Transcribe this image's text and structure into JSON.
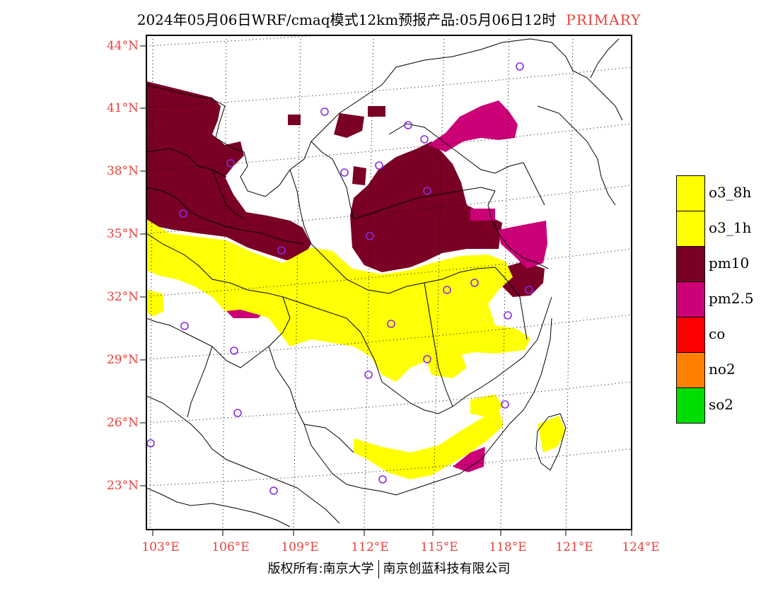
{
  "header": {
    "title": "2024年05月06日WRF/cmaq模式12km预报产品:05月06日12时",
    "tag": "PRIMARY"
  },
  "map": {
    "lat_labels": [
      "44°N",
      "41°N",
      "38°N",
      "35°N",
      "32°N",
      "29°N",
      "26°N",
      "23°N"
    ],
    "lon_labels": [
      "103°E",
      "106°E",
      "109°E",
      "112°E",
      "115°E",
      "118°E",
      "121°E",
      "124°E"
    ]
  },
  "legend": {
    "items": [
      {
        "label": "o3_8h",
        "color": "#ffff00"
      },
      {
        "label": "o3_1h",
        "color": "#ffff00"
      },
      {
        "label": "pm10",
        "color": "#7a0025"
      },
      {
        "label": "pm2.5",
        "color": "#cc0077"
      },
      {
        "label": "co",
        "color": "#ff0000"
      },
      {
        "label": "no2",
        "color": "#ff7f00"
      },
      {
        "label": "so2",
        "color": "#00dd00"
      }
    ]
  },
  "footer": {
    "left": "版权所有:南京大学",
    "right": "南京创蓝科技有限公司"
  },
  "colors": {
    "label_red": "#e8403a",
    "yellow": "#ffff00",
    "pm10": "#7a0025",
    "pm25": "#cc0077",
    "station": "#8a2be2"
  }
}
